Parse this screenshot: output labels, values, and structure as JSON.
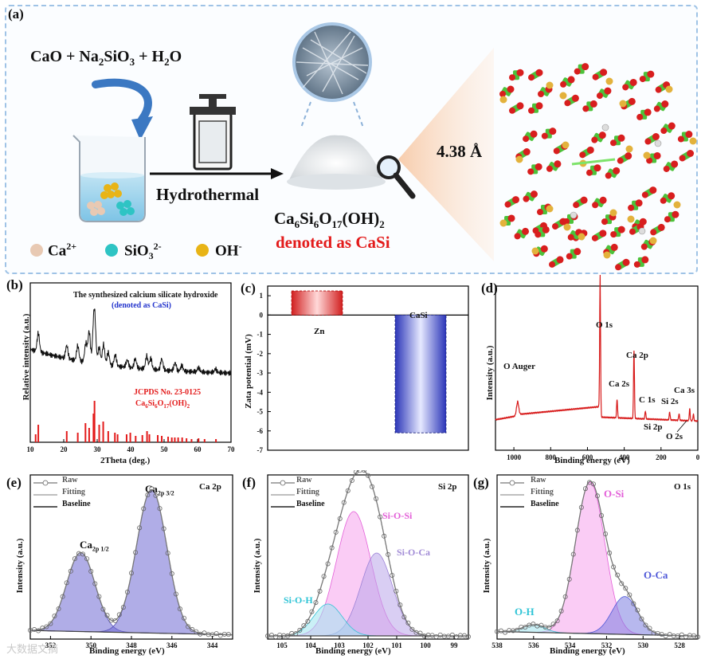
{
  "panel_a": {
    "label": "(a)",
    "reactants": {
      "cao": "CaO",
      "plus1": "+",
      "na": "Na",
      "sub2": "2",
      "sio": "SiO",
      "sub3": "3",
      "plus2": "+",
      "h": "H",
      "sub2b": "2",
      "o": "O"
    },
    "arrow_label": "Hydrothermal",
    "product_main": "Ca",
    "product_s6a": "6",
    "product_si": "Si",
    "product_s6b": "6",
    "product_o": "O",
    "product_s17": "17",
    "product_oh": "(OH)",
    "product_s2": "2",
    "denoted": "denoted as CaSi",
    "spacing": "4.38 Å",
    "legend": {
      "ca": "Ca",
      "ca_sup": "2+",
      "sio": "SiO",
      "sio_sub": "3",
      "sio_sup": "2-",
      "oh": "OH",
      "oh_sup": "-"
    },
    "colors": {
      "ca": "#e8c9b3",
      "sio": "#2ec4c4",
      "oh": "#e8b416",
      "structure_red": "#d81e1e",
      "structure_green": "#4cc23a",
      "structure_yellow": "#e3b23c"
    }
  },
  "panel_b": {
    "label": "(b)",
    "title1": "The synthesized calcium silicate hydroxide",
    "title2": "(denoted as CaSi)",
    "ref1": "JCPDS No. 23-0125",
    "ref2_a": "Ca",
    "ref2_s6a": "6",
    "ref2_si": "Si",
    "ref2_s6b": "6",
    "ref2_o": "O",
    "ref2_s17": "17",
    "ref2_oh": "(OH)",
    "ref2_s2": "2",
    "xlabel": "2Theta (deg.)",
    "ylabel": "Relative intensity (a.u.)",
    "xticks": [
      "10",
      "20",
      "30",
      "40",
      "50",
      "60",
      "70"
    ]
  },
  "panel_c": {
    "label": "(c)",
    "ylabel": "Zata potential (mV)",
    "yticks": [
      "1",
      "0",
      "-1",
      "-2",
      "-3",
      "-4",
      "-5",
      "-6",
      "-7"
    ],
    "bar1_label": "Zn",
    "bar2_label": "CaSi"
  },
  "panel_d": {
    "label": "(d)",
    "xlabel": "Binding energy (eV)",
    "ylabel": "Intensity (a.u.)",
    "xticks": [
      "1000",
      "800",
      "600",
      "400",
      "200",
      "0"
    ],
    "peaks": {
      "o1s": "O 1s",
      "oauger": "O Auger",
      "ca2p": "Ca 2p",
      "ca2s": "Ca 2s",
      "c1s": "C 1s",
      "si2s": "Si 2s",
      "ca3s": "Ca 3s",
      "si2p": "Si 2p",
      "o2s": "O 2s"
    }
  },
  "panel_e": {
    "label": "(e)",
    "tag": "Ca 2p",
    "legend": {
      "raw": "Raw",
      "fitting": "Fitting",
      "baseline": "Baseline"
    },
    "peak1_main": "Ca",
    "peak1_sub": "2p 1/2",
    "peak2_main": "Ca",
    "peak2_sub": "2p 3/2",
    "xlabel": "Binding energy (eV)",
    "ylabel": "Intensity (a.u.)",
    "xticks": [
      "352",
      "350",
      "348",
      "346",
      "344"
    ]
  },
  "panel_f": {
    "label": "(f)",
    "tag": "Si 2p",
    "legend": {
      "raw": "Raw",
      "fitting": "Fitting",
      "baseline": "Baseline"
    },
    "comp1": "Si-O-Si",
    "comp2": "Si-O-Ca",
    "comp3": "Si-O-H",
    "xlabel": "Binding energy (eV)",
    "ylabel": "Intensity (a.u.)",
    "xticks": [
      "105",
      "104",
      "103",
      "102",
      "101",
      "100",
      "99"
    ]
  },
  "panel_g": {
    "label": "(g)",
    "tag": "O 1s",
    "legend": {
      "raw": "Raw",
      "fitting": "Fitting",
      "baseline": "Baseline"
    },
    "comp1": "O-Si",
    "comp2": "O-Ca",
    "comp3": "O-H",
    "xlabel": "Binding energy (eV)",
    "ylabel": "Intensity (a.u.)",
    "xticks": [
      "538",
      "536",
      "534",
      "532",
      "530",
      "528"
    ]
  },
  "watermark": "大数据文摘",
  "chart_data": [
    {
      "type": "line",
      "id": "xrd",
      "title": "The synthesized calcium silicate hydroxide (denoted as CaSi)",
      "xlabel": "2Theta (deg.)",
      "ylabel": "Relative intensity (a.u.)",
      "xlim": [
        10,
        70
      ],
      "reference_peaks_2theta": [
        11.6,
        12.4,
        20.9,
        24.2,
        26.5,
        27.6,
        28.9,
        29.2,
        30.6,
        31.8,
        33.3,
        35.3,
        36.1,
        38.8,
        39.9,
        41.5,
        43.5,
        44.9,
        45.6,
        48.1,
        49.3,
        51.2,
        52.3,
        53.2,
        54.2,
        55.4,
        56.7,
        58.2,
        60.3,
        62.1,
        65.5
      ]
    },
    {
      "type": "bar",
      "id": "zeta",
      "categories": [
        "Zn",
        "CaSi"
      ],
      "values": [
        1.25,
        -6.1
      ],
      "ylabel": "Zata potential (mV)",
      "ylim": [
        -7,
        1.5
      ]
    },
    {
      "type": "line",
      "id": "xps_survey",
      "xlabel": "Binding energy (eV)",
      "ylabel": "Intensity (a.u.)",
      "xlim": [
        1100,
        0
      ],
      "peaks_eV": {
        "O Auger": 980,
        "O 1s": 531,
        "Ca 2s": 439,
        "Ca 2p": 347,
        "C 1s": 285,
        "Si 2s": 153,
        "Si 2p": 102,
        "Ca 3s": 44,
        "O 2s": 24
      }
    },
    {
      "type": "line",
      "id": "xps_ca2p",
      "xlabel": "Binding energy (eV)",
      "ylabel": "Intensity (a.u.)",
      "xlim": [
        353,
        343
      ],
      "components": [
        {
          "name": "Ca 2p 1/2",
          "center": 350.5,
          "height": 0.55
        },
        {
          "name": "Ca 2p 3/2",
          "center": 347.0,
          "height": 1.0
        }
      ]
    },
    {
      "type": "line",
      "id": "xps_si2p",
      "xlabel": "Binding energy (eV)",
      "ylabel": "Intensity (a.u.)",
      "xlim": [
        105.5,
        98.5
      ],
      "components": [
        {
          "name": "Si-O-Si",
          "center": 102.5,
          "height": 0.78
        },
        {
          "name": "Si-O-Ca",
          "center": 101.7,
          "height": 0.52
        },
        {
          "name": "Si-O-H",
          "center": 103.4,
          "height": 0.2
        }
      ]
    },
    {
      "type": "line",
      "id": "xps_o1s",
      "xlabel": "Binding energy (eV)",
      "ylabel": "Intensity (a.u.)",
      "xlim": [
        538,
        527
      ],
      "components": [
        {
          "name": "O-Si",
          "center": 532.9,
          "height": 1.0
        },
        {
          "name": "O-Ca",
          "center": 531.0,
          "height": 0.25
        },
        {
          "name": "O-H",
          "center": 536.0,
          "height": 0.05
        }
      ]
    }
  ]
}
